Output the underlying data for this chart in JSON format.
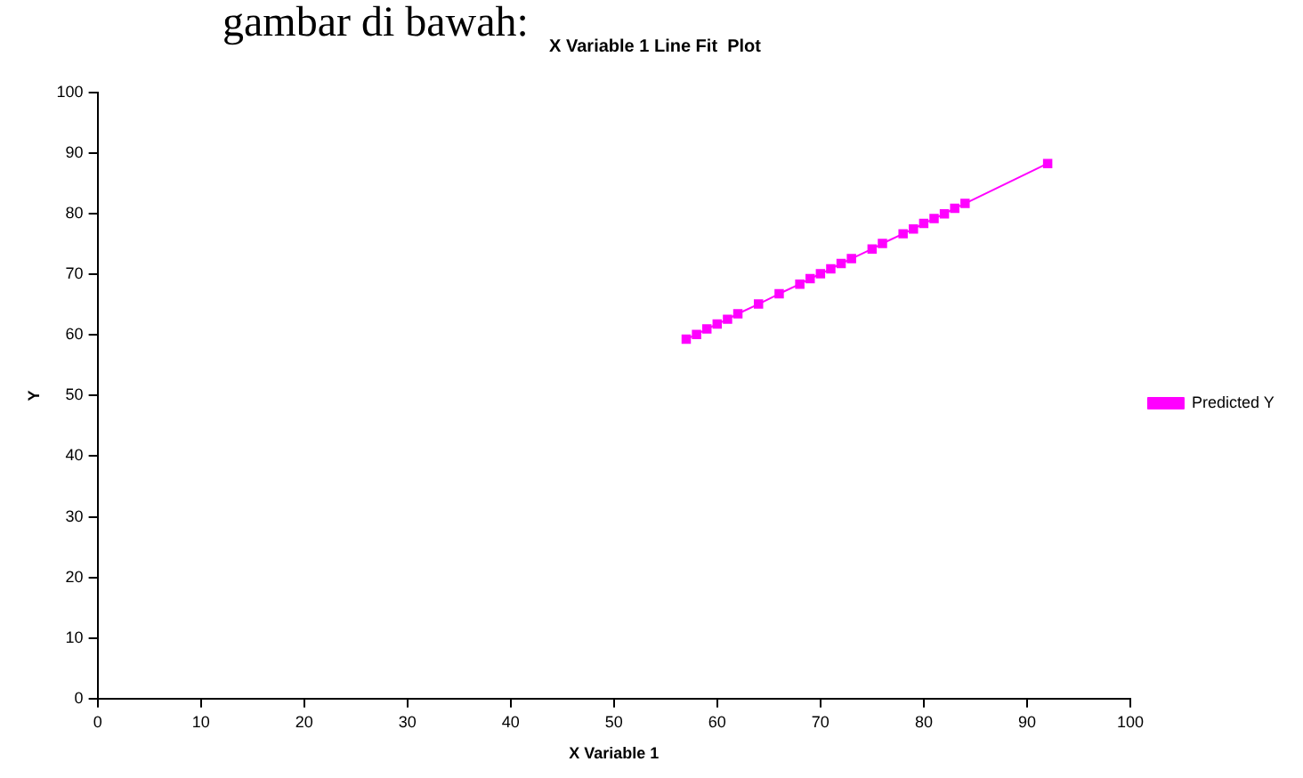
{
  "chart_data": {
    "type": "line",
    "title": "X Variable 1 Line Fit  Plot",
    "xlabel": "X Variable 1",
    "ylabel": "Y",
    "annotations": [
      "gambar di bawah:"
    ],
    "x": [
      57,
      58,
      59,
      60,
      61,
      62,
      64,
      66,
      68,
      69,
      70,
      71,
      72,
      73,
      75,
      76,
      78,
      79,
      80,
      81,
      82,
      83,
      84,
      92
    ],
    "series": [
      {
        "name": "Predicted Y",
        "color": "#ff00ff",
        "values": [
          59.3,
          60.1,
          61.0,
          61.8,
          62.6,
          63.5,
          65.1,
          66.8,
          68.4,
          69.3,
          70.1,
          70.9,
          71.8,
          72.6,
          74.2,
          75.1,
          76.7,
          77.5,
          78.4,
          79.2,
          80.0,
          80.9,
          81.7,
          88.3
        ]
      }
    ],
    "xlim": [
      0,
      100
    ],
    "xticks": [
      0,
      10,
      20,
      30,
      40,
      50,
      60,
      70,
      80,
      90,
      100
    ],
    "ylim": [
      0,
      100
    ],
    "yticks": [
      0,
      10,
      20,
      30,
      40,
      50,
      60,
      70,
      80,
      90,
      100
    ],
    "grid": false,
    "legend": "right",
    "marker": "square",
    "line_style": "solid"
  }
}
